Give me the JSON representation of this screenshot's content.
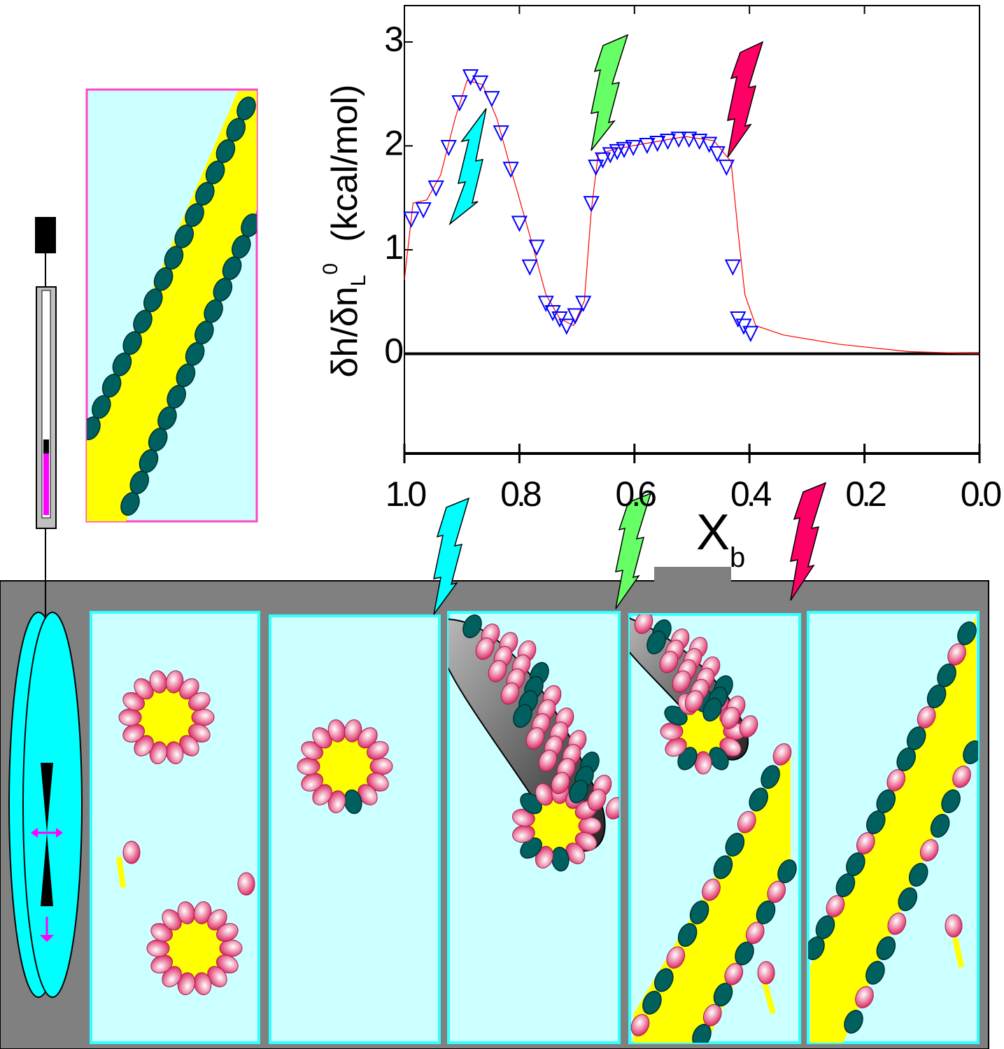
{
  "chart_data": {
    "type": "scatter",
    "x_label": [
      "X",
      "b"
    ],
    "y_label": [
      "δh/δn",
      "L",
      "0",
      "(kcal/mol)"
    ],
    "xlim": [
      1.0,
      0.0
    ],
    "ylim": [
      -0.96,
      3.35
    ],
    "xticks": [
      {
        "value": 1.0,
        "label": "1.0"
      },
      0.8,
      0.6,
      0.4,
      0.2,
      {
        "value": 0.0,
        "label": "0.0"
      }
    ],
    "yticks": [
      0,
      1,
      2,
      3
    ],
    "series": [
      {
        "color": "#0000ff",
        "marker": "triangle-down",
        "x": [
          0.988,
          0.967,
          0.945,
          0.923,
          0.904,
          0.885,
          0.868,
          0.848,
          0.832,
          0.815,
          0.8,
          0.77,
          0.782,
          0.754,
          0.742,
          0.73,
          0.718,
          0.703,
          0.689,
          0.675,
          0.667,
          0.655,
          0.642,
          0.63,
          0.618,
          0.602,
          0.578,
          0.56,
          0.542,
          0.523,
          0.505,
          0.487,
          0.47,
          0.456,
          0.44,
          0.429,
          0.42,
          0.41,
          0.398
        ],
        "values": [
          1.3,
          1.39,
          1.6,
          1.99,
          2.42,
          2.67,
          2.61,
          2.46,
          2.13,
          1.78,
          1.26,
          1.03,
          0.84,
          0.49,
          0.4,
          0.34,
          0.27,
          0.37,
          0.49,
          1.45,
          1.8,
          1.87,
          1.92,
          1.95,
          1.97,
          1.99,
          2.01,
          2.03,
          2.05,
          2.07,
          2.07,
          2.05,
          2.02,
          1.93,
          1.8,
          0.84,
          0.34,
          0.27,
          0.2
        ]
      },
      {
        "color": "#ff0000",
        "marker": "line",
        "x": [
          1.0,
          0.985,
          0.961,
          0.937,
          0.912,
          0.891,
          0.864,
          0.839,
          0.815,
          0.779,
          0.754,
          0.73,
          0.706,
          0.687,
          0.675,
          0.663,
          0.633,
          0.584,
          0.511,
          0.462,
          0.432,
          0.42,
          0.408,
          0.389,
          0.341,
          0.243,
          0.122,
          0.0
        ],
        "values": [
          0.71,
          1.45,
          1.48,
          1.72,
          2.26,
          2.63,
          2.59,
          2.26,
          1.78,
          1.08,
          0.57,
          0.34,
          0.27,
          0.51,
          1.38,
          1.92,
          1.97,
          2.02,
          2.09,
          2.05,
          1.85,
          1.18,
          0.57,
          0.27,
          0.18,
          0.09,
          0.02,
          0.0
        ]
      }
    ]
  }
}
